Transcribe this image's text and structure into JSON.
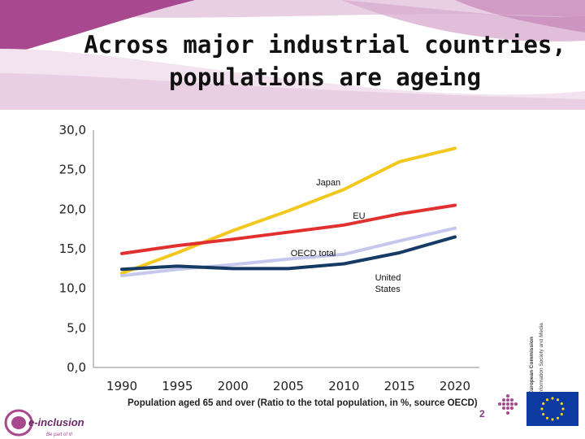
{
  "slide": {
    "title_lines": [
      "Across major industrial countries,",
      "populations are ageing"
    ],
    "caption": "Population aged 65 and over (Ratio to the total population, in %, source OECD)",
    "page_number": "2",
    "logo_text": "e-inclusion",
    "logo_tagline": "Be part of it!",
    "ec_line1": "European Commission",
    "ec_line2": "Information Society and Media"
  },
  "colors": {
    "japan": "#f2c81e",
    "eu": "#e0302f",
    "oecd": "#c5c8ec",
    "us": "#153a63",
    "header_purple": "#a8488f",
    "header_light": "#e9cfe4"
  },
  "chart_data": {
    "type": "line",
    "x": [
      1990,
      1995,
      2000,
      2005,
      2010,
      2015,
      2020
    ],
    "xticks": [
      "1990",
      "1995",
      "2000",
      "2005",
      "2010",
      "2015",
      "2020"
    ],
    "yticks": [
      "0,0",
      "5,0",
      "10,0",
      "15,0",
      "20,0",
      "25,0",
      "30,0"
    ],
    "ylim": [
      0,
      30
    ],
    "grid": false,
    "series": [
      {
        "name": "Japan",
        "color_key": "japan",
        "values": [
          11.9,
          14.5,
          17.3,
          19.8,
          22.5,
          26.0,
          27.7
        ]
      },
      {
        "name": "EU",
        "color_key": "eu",
        "values": [
          14.4,
          15.4,
          16.2,
          17.1,
          18.0,
          19.4,
          20.5
        ]
      },
      {
        "name": "OECD total",
        "color_key": "oecd",
        "values": [
          11.6,
          12.4,
          13.0,
          13.7,
          14.3,
          16.0,
          17.6
        ]
      },
      {
        "name": "United States",
        "color_key": "us",
        "values": [
          12.4,
          12.8,
          12.5,
          12.5,
          13.1,
          14.5,
          16.5
        ]
      }
    ],
    "annotations": [
      {
        "lines": [
          "Japan"
        ],
        "x": 2007.5,
        "y": 23.0
      },
      {
        "lines": [
          "EU"
        ],
        "x": 2010.8,
        "y": 18.8
      },
      {
        "lines": [
          "OECD total"
        ],
        "x": 2005.2,
        "y": 14.1
      },
      {
        "lines": [
          "United",
          "States"
        ],
        "x": 2012.8,
        "y": 11.0
      }
    ]
  }
}
